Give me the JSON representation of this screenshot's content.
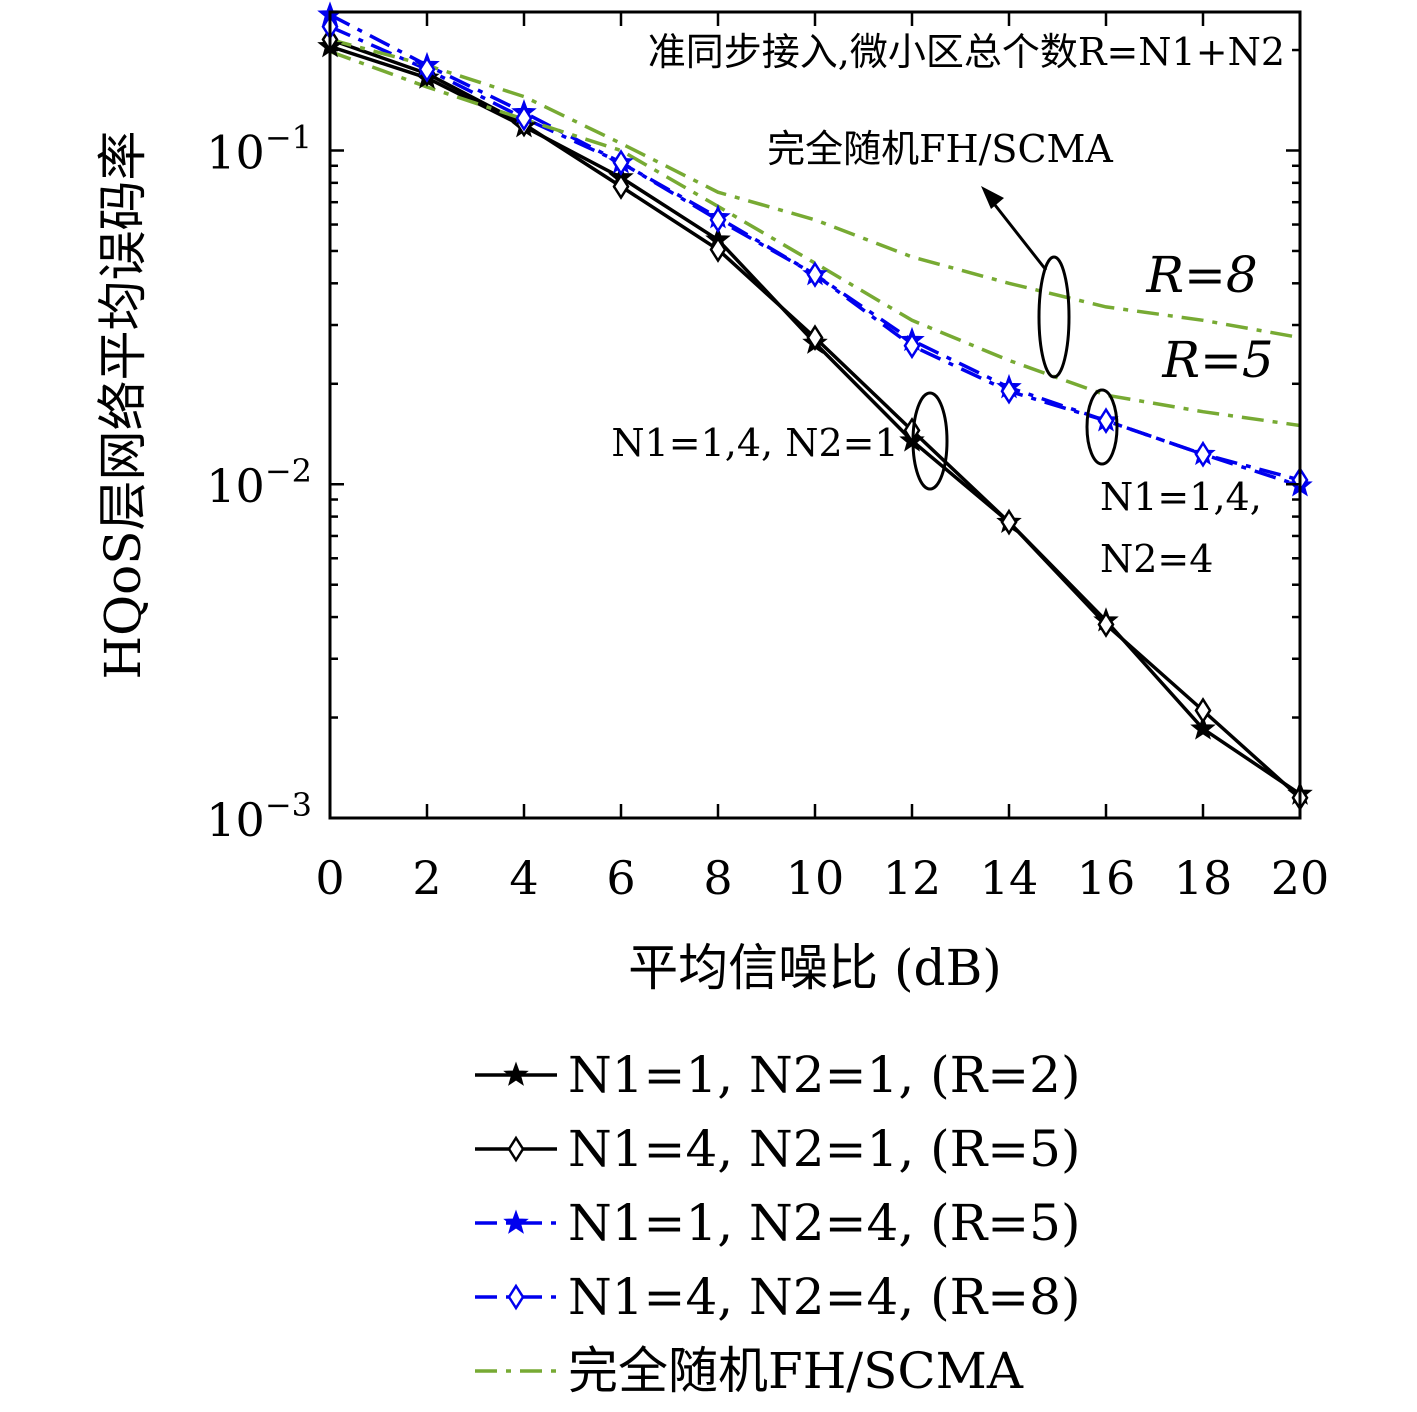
{
  "chart_data": {
    "type": "line",
    "xlabel": "平均信噪比 (dB)",
    "ylabel": "HQoS层网络平均误码率",
    "yscale": "log",
    "xlim": [
      0,
      20
    ],
    "ylim": [
      0.001,
      0.26
    ],
    "x_ticks": [
      0,
      2,
      4,
      6,
      8,
      10,
      12,
      14,
      16,
      18,
      20
    ],
    "x_tick_labels": [
      "0",
      "2",
      "4",
      "6",
      "8",
      "10",
      "12",
      "14",
      "16",
      "18",
      "20"
    ],
    "y_ticks": [
      0.1,
      0.01,
      0.001
    ],
    "y_tick_labels": [
      {
        "base": "10",
        "exp": "−1"
      },
      {
        "base": "10",
        "exp": "−2"
      },
      {
        "base": "10",
        "exp": "−3"
      }
    ],
    "grid": false,
    "legend_position": "below-plot",
    "annotations": {
      "top_text": "准同步接入,微小区总个数R=N1+N2",
      "fh_label": "完全随机FH/SCMA",
      "r8": "R=8",
      "r5": "R=5",
      "n_label_left": "N1=1,4, N2=1",
      "n_label_right_1": "N1=1,4,",
      "n_label_right_2": "N2=4"
    },
    "series": [
      {
        "name": "N1=1, N2=1, (R=2)",
        "legend": {
          "n1": "1",
          "n2": "1",
          "r": "2"
        },
        "color": "#000000",
        "dash": "solid",
        "marker": "star",
        "x": [
          0,
          2,
          4,
          6,
          8,
          10,
          12,
          14,
          16,
          18,
          20
        ],
        "y": [
          0.205,
          0.165,
          0.118,
          0.083,
          0.054,
          0.0265,
          0.0135,
          0.0077,
          0.0039,
          0.00185,
          0.00118
        ]
      },
      {
        "name": "N1=4, N2=1, (R=5)",
        "legend": {
          "n1": "4",
          "n2": "1",
          "r": "5"
        },
        "color": "#000000",
        "dash": "solid",
        "marker": "diamond",
        "x": [
          0,
          2,
          4,
          6,
          8,
          10,
          12,
          14,
          16,
          18,
          20
        ],
        "y": [
          0.215,
          0.17,
          0.12,
          0.078,
          0.0505,
          0.0275,
          0.0145,
          0.0077,
          0.0038,
          0.0021,
          0.00115
        ]
      },
      {
        "name": "N1=1, N2=4, (R=5)",
        "legend": {
          "n1": "1",
          "n2": "4",
          "r": "5"
        },
        "color": "#0000ee",
        "dash": "dashdot",
        "marker": "star",
        "x": [
          0,
          2,
          4,
          6,
          8,
          10,
          12,
          14,
          16,
          18,
          20
        ],
        "y": [
          0.255,
          0.18,
          0.13,
          0.092,
          0.063,
          0.0425,
          0.027,
          0.0195,
          0.0155,
          0.0123,
          0.0099
        ]
      },
      {
        "name": "N1=4, N2=4, (R=8)",
        "legend": {
          "n1": "4",
          "n2": "4",
          "r": "8"
        },
        "color": "#0000ee",
        "dash": "dashdot",
        "marker": "diamond",
        "x": [
          0,
          2,
          4,
          6,
          8,
          10,
          12,
          14,
          16,
          18,
          20
        ],
        "y": [
          0.235,
          0.175,
          0.125,
          0.092,
          0.062,
          0.0425,
          0.026,
          0.019,
          0.0155,
          0.0123,
          0.0103
        ]
      },
      {
        "name": "完全随机FH/SCMA",
        "legend_label": "完全随机FH/SCMA",
        "color": "#77aa33",
        "dash": "dashdot",
        "marker": "none",
        "x": [
          0,
          2,
          4,
          6,
          8,
          10,
          12,
          14,
          16,
          18,
          20
        ],
        "y": [
          0.215,
          0.18,
          0.145,
          0.105,
          0.075,
          0.062,
          0.048,
          0.04,
          0.034,
          0.031,
          0.0275
        ]
      },
      {
        "name": "完全随机FH/SCMA",
        "legend_label": "",
        "color": "#77aa33",
        "dash": "dashdot",
        "marker": "none",
        "x": [
          0,
          2,
          4,
          6,
          8,
          10,
          12,
          14,
          16,
          18,
          20
        ],
        "y": [
          0.198,
          0.155,
          0.124,
          0.1,
          0.068,
          0.046,
          0.031,
          0.0235,
          0.0185,
          0.0165,
          0.015
        ]
      }
    ]
  }
}
